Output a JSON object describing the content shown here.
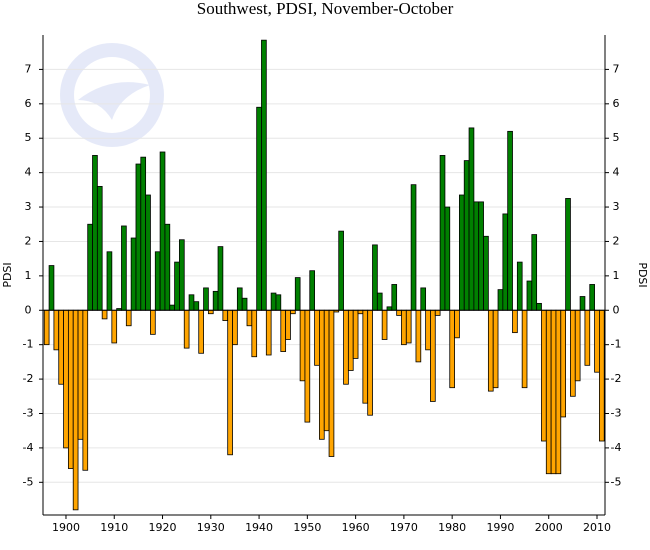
{
  "chart_data": {
    "type": "bar",
    "title": "Southwest, PDSI, November-October",
    "y_label": "PDSI",
    "y2_label": "PDSI",
    "x": [
      1896,
      1897,
      1898,
      1899,
      1900,
      1901,
      1902,
      1903,
      1904,
      1905,
      1906,
      1907,
      1908,
      1909,
      1910,
      1911,
      1912,
      1913,
      1914,
      1915,
      1916,
      1917,
      1918,
      1919,
      1920,
      1921,
      1922,
      1923,
      1924,
      1925,
      1926,
      1927,
      1928,
      1929,
      1930,
      1931,
      1932,
      1933,
      1934,
      1935,
      1936,
      1937,
      1938,
      1939,
      1940,
      1941,
      1942,
      1943,
      1944,
      1945,
      1946,
      1947,
      1948,
      1949,
      1950,
      1951,
      1952,
      1953,
      1954,
      1955,
      1956,
      1957,
      1958,
      1959,
      1960,
      1961,
      1962,
      1963,
      1964,
      1965,
      1966,
      1967,
      1968,
      1969,
      1970,
      1971,
      1972,
      1973,
      1974,
      1975,
      1976,
      1977,
      1978,
      1979,
      1980,
      1981,
      1982,
      1983,
      1984,
      1985,
      1986,
      1987,
      1988,
      1989,
      1990,
      1991,
      1992,
      1993,
      1994,
      1995,
      1996,
      1997,
      1998,
      1999,
      2000,
      2001,
      2002,
      2003,
      2004,
      2005,
      2006,
      2007,
      2008,
      2009,
      2010,
      2011
    ],
    "values": [
      -1.0,
      1.3,
      -1.15,
      -2.15,
      -4.0,
      -4.6,
      -5.8,
      -3.75,
      -4.65,
      2.5,
      4.5,
      3.6,
      -0.25,
      1.7,
      -0.95,
      0.05,
      2.45,
      -0.45,
      2.1,
      4.25,
      4.45,
      3.35,
      -0.7,
      1.7,
      4.6,
      2.5,
      0.15,
      1.4,
      2.05,
      -1.1,
      0.45,
      0.25,
      -1.25,
      0.65,
      -0.1,
      0.55,
      1.85,
      -0.3,
      -4.2,
      -1.0,
      0.65,
      0.35,
      -0.45,
      -1.35,
      5.9,
      7.85,
      -1.3,
      0.5,
      0.45,
      -1.2,
      -0.85,
      -0.1,
      0.95,
      -2.05,
      -3.25,
      1.15,
      -1.6,
      -3.75,
      -3.5,
      -4.25,
      -0.05,
      2.3,
      -2.15,
      -1.75,
      -1.4,
      -0.1,
      -2.7,
      -3.05,
      1.9,
      0.5,
      -0.85,
      0.1,
      0.75,
      -0.15,
      -1.0,
      -0.95,
      3.65,
      -1.5,
      0.65,
      -1.15,
      -2.65,
      -0.15,
      4.5,
      3.0,
      -2.25,
      -0.8,
      3.35,
      4.35,
      5.3,
      3.15,
      3.15,
      2.15,
      -2.35,
      -2.25,
      0.6,
      2.8,
      5.2,
      -0.65,
      1.4,
      -2.25,
      0.85,
      2.2,
      0.2,
      -3.8,
      -4.75,
      -4.75,
      -4.75,
      -3.1,
      3.25,
      -2.5,
      -2.05,
      0.4,
      -1.6,
      0.75,
      -1.8,
      -3.8
    ],
    "positive_color": "#008000",
    "negative_color": "#ffa500",
    "xlim": [
      1895.24,
      2011.66
    ],
    "xticks": [
      1900,
      1910,
      1920,
      1930,
      1940,
      1950,
      1960,
      1970,
      1980,
      1990,
      2000,
      2010
    ],
    "ylim": [
      -5.95,
      8.0
    ],
    "yticks": [
      -5,
      -4,
      -3,
      -2,
      -1,
      0,
      1,
      2,
      3,
      4,
      5,
      6,
      7
    ],
    "y2lim": [
      -5.95,
      8.0
    ],
    "y2ticks": [
      -5,
      -4,
      -3,
      -2,
      -1,
      0,
      1,
      2,
      3,
      4,
      5,
      6,
      7
    ],
    "grid": true
  }
}
